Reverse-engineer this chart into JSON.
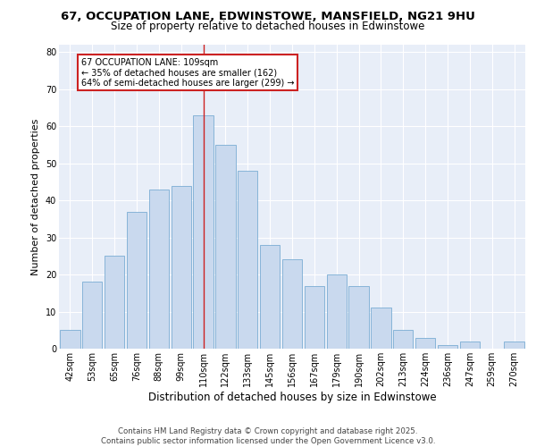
{
  "title1": "67, OCCUPATION LANE, EDWINSTOWE, MANSFIELD, NG21 9HU",
  "title2": "Size of property relative to detached houses in Edwinstowe",
  "xlabel": "Distribution of detached houses by size in Edwinstowe",
  "ylabel": "Number of detached properties",
  "categories": [
    "42sqm",
    "53sqm",
    "65sqm",
    "76sqm",
    "88sqm",
    "99sqm",
    "110sqm",
    "122sqm",
    "133sqm",
    "145sqm",
    "156sqm",
    "167sqm",
    "179sqm",
    "190sqm",
    "202sqm",
    "213sqm",
    "224sqm",
    "236sqm",
    "247sqm",
    "259sqm",
    "270sqm"
  ],
  "values": [
    5,
    18,
    25,
    37,
    43,
    44,
    63,
    55,
    48,
    28,
    24,
    17,
    20,
    17,
    11,
    5,
    3,
    1,
    2,
    0,
    2
  ],
  "bar_color": "#c9d9ee",
  "bar_edge_color": "#7aadd4",
  "highlight_index": 6,
  "highlight_line_color": "#cc2222",
  "annotation_box_text": "67 OCCUPATION LANE: 109sqm\n← 35% of detached houses are smaller (162)\n64% of semi-detached houses are larger (299) →",
  "annotation_box_color": "#cc2222",
  "ylim": [
    0,
    82
  ],
  "yticks": [
    0,
    10,
    20,
    30,
    40,
    50,
    60,
    70,
    80
  ],
  "background_color": "#e8eef8",
  "footer1": "Contains HM Land Registry data © Crown copyright and database right 2025.",
  "footer2": "Contains public sector information licensed under the Open Government Licence v3.0.",
  "title1_fontsize": 9.5,
  "title2_fontsize": 8.5,
  "xlabel_fontsize": 8.5,
  "ylabel_fontsize": 8.0,
  "tick_fontsize": 7.0,
  "annotation_fontsize": 7.0,
  "footer_fontsize": 6.2
}
